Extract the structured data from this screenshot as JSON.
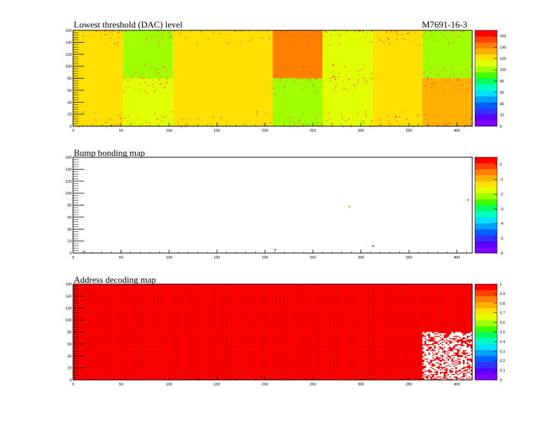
{
  "header": {
    "module_id": "M7691-16-3"
  },
  "chart_data": [
    {
      "type": "heatmap",
      "title": "Lowest threshold (DAC) level",
      "x_ticks": [
        "0",
        "50",
        "100",
        "150",
        "200",
        "250",
        "300",
        "350",
        "400"
      ],
      "y_ticks": [
        "0",
        "20",
        "40",
        "60",
        "80",
        "100",
        "120",
        "140",
        "160"
      ],
      "xlim": [
        0,
        416
      ],
      "ylim": [
        0,
        160
      ],
      "colorbar": {
        "min": 0,
        "max": 170,
        "ticks": [
          "0",
          "20",
          "40",
          "60",
          "80",
          "100",
          "120",
          "140",
          "160"
        ]
      },
      "regions": [
        {
          "x": [
            0,
            52
          ],
          "y": [
            0,
            160
          ],
          "value": 126
        },
        {
          "x": [
            52,
            104
          ],
          "y": [
            80,
            160
          ],
          "value": 106
        },
        {
          "x": [
            52,
            104
          ],
          "y": [
            0,
            80
          ],
          "value": 114
        },
        {
          "x": [
            104,
            208
          ],
          "y": [
            0,
            160
          ],
          "value": 126
        },
        {
          "x": [
            208,
            260
          ],
          "y": [
            80,
            160
          ],
          "value": 146
        },
        {
          "x": [
            208,
            260
          ],
          "y": [
            0,
            80
          ],
          "value": 106
        },
        {
          "x": [
            260,
            312
          ],
          "y": [
            80,
            160
          ],
          "value": 110
        },
        {
          "x": [
            260,
            312
          ],
          "y": [
            0,
            80
          ],
          "value": 114
        },
        {
          "x": [
            312,
            364
          ],
          "y": [
            0,
            160
          ],
          "value": 124
        },
        {
          "x": [
            364,
            416
          ],
          "y": [
            80,
            160
          ],
          "value": 106
        },
        {
          "x": [
            364,
            416
          ],
          "y": [
            0,
            80
          ],
          "value": 138
        }
      ],
      "grid": false
    },
    {
      "type": "heatmap",
      "title": "Bump bonding map",
      "x_ticks": [
        "0",
        "50",
        "100",
        "150",
        "200",
        "250",
        "300",
        "350",
        "400"
      ],
      "y_ticks": [
        "0",
        "20",
        "40",
        "60",
        "80",
        "100",
        "120",
        "140",
        "160"
      ],
      "xlim": [
        0,
        416
      ],
      "ylim": [
        0,
        160
      ],
      "colorbar": {
        "min": -6,
        "max": 0.5,
        "ticks": [
          "0",
          "-1",
          "-2",
          "-3",
          "-4",
          "-5",
          "-6"
        ]
      },
      "points": [
        {
          "x": 11,
          "y": 2,
          "value": -5
        },
        {
          "x": 210,
          "y": 5,
          "value": -4.5
        },
        {
          "x": 287,
          "y": 77,
          "value": -0.5
        },
        {
          "x": 312,
          "y": 11,
          "value": -5.5
        },
        {
          "x": 411,
          "y": 88,
          "value": -0.3
        }
      ],
      "grid": false
    },
    {
      "type": "heatmap",
      "title": "Address decoding map",
      "x_ticks": [
        "0",
        "50",
        "100",
        "150",
        "200",
        "250",
        "300",
        "350",
        "400"
      ],
      "y_ticks": [
        "0",
        "20",
        "40",
        "60",
        "80",
        "100",
        "120",
        "140",
        "160"
      ],
      "xlim": [
        0,
        416
      ],
      "ylim": [
        0,
        160
      ],
      "colorbar": {
        "min": 0,
        "max": 1,
        "ticks": [
          "0",
          "0.1",
          "0.2",
          "0.3",
          "0.4",
          "0.5",
          "0.6",
          "0.7",
          "0.8",
          "0.9",
          "1"
        ]
      },
      "fill_value": 1,
      "missing_region": {
        "x": [
          364,
          416
        ],
        "y": [
          0,
          80
        ]
      },
      "grid": false
    }
  ],
  "colors": {
    "palette": [
      "#7f00ff",
      "#5a00ff",
      "#3030ff",
      "#0060ff",
      "#00a0ff",
      "#00e0ff",
      "#00ffc0",
      "#00ff60",
      "#40ff00",
      "#a0ff00",
      "#e0ff00",
      "#ffe000",
      "#ffb000",
      "#ff8000",
      "#ff4000",
      "#ff0000"
    ],
    "frame": "#000000",
    "grid_line": "#aa0000"
  }
}
